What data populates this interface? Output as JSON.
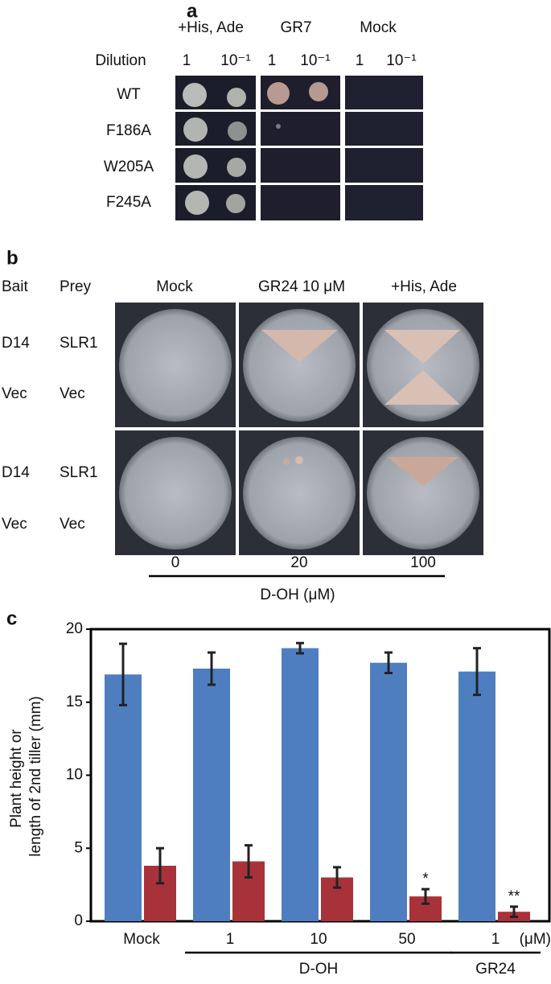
{
  "panel_a": {
    "letter": "a",
    "columns": [
      "+His, Ade",
      "GR7",
      "Mock"
    ],
    "dilution_label": "Dilution",
    "dilutions": [
      "1",
      "10⁻¹"
    ],
    "rows": [
      "WT",
      "F186A",
      "W205A",
      "F245A"
    ]
  },
  "panel_b": {
    "letter": "b",
    "bait": "Bait",
    "prey": "Prey",
    "columns": [
      "Mock",
      "GR24 10 μM",
      "+His, Ade"
    ],
    "row_bait": [
      "D14",
      "Vec"
    ],
    "row_prey": [
      "SLR1",
      "Vec"
    ],
    "concentrations": [
      "0",
      "20",
      "100"
    ],
    "concentration_label": "D-OH (μM)"
  },
  "chart_data": {
    "type": "bar",
    "letter": "c",
    "y_label": "Plant height or length of 2nd tiller (mm)",
    "categories": [
      "Mock",
      "1",
      "10",
      "50",
      "1"
    ],
    "category_groups": [
      null,
      "D-OH",
      "D-OH",
      "D-OH",
      "GR24"
    ],
    "x_unit": "(μM)",
    "series": [
      {
        "color": "#4f7ec0",
        "values": [
          16.9,
          17.3,
          18.7,
          17.7,
          17.1
        ],
        "errors": [
          2.1,
          1.1,
          0.35,
          0.7,
          1.6
        ]
      },
      {
        "color": "#a8323a",
        "values": [
          3.8,
          4.1,
          3.0,
          1.7,
          0.65
        ],
        "errors": [
          1.2,
          1.1,
          0.7,
          0.5,
          0.35
        ],
        "annotations": [
          null,
          null,
          null,
          "*",
          "**"
        ]
      }
    ],
    "ylim": [
      0,
      20
    ],
    "yticks": [
      0,
      5,
      10,
      15,
      20
    ]
  }
}
